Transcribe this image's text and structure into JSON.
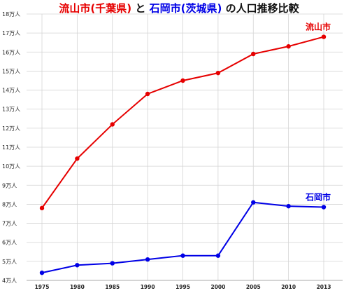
{
  "chart_data": {
    "type": "line",
    "title_parts": [
      {
        "text": "流山市(千葉県)",
        "color": "#e60000"
      },
      {
        "text": " と ",
        "color": "#111111"
      },
      {
        "text": "石岡市(茨城県)",
        "color": "#0000e6"
      },
      {
        "text": " の人口推移比較",
        "color": "#111111"
      }
    ],
    "x": [
      "1975",
      "1980",
      "1985",
      "1990",
      "1995",
      "2000",
      "2005",
      "2010",
      "2013"
    ],
    "y_ticks": [
      "4万人",
      "5万人",
      "6万人",
      "7万人",
      "8万人",
      "9万人",
      "10万人",
      "11万人",
      "12万人",
      "13万人",
      "14万人",
      "15万人",
      "16万人",
      "17万人",
      "18万人"
    ],
    "ylim": [
      40000,
      180000
    ],
    "grid": true,
    "series": [
      {
        "name": "流山市",
        "color": "#e60000",
        "values": [
          78000,
          104000,
          122000,
          138000,
          145000,
          149000,
          159000,
          163000,
          168000
        ]
      },
      {
        "name": "石岡市",
        "color": "#0000e6",
        "values": [
          44000,
          48000,
          49000,
          51000,
          53000,
          53000,
          81000,
          79000,
          78500
        ]
      }
    ]
  }
}
